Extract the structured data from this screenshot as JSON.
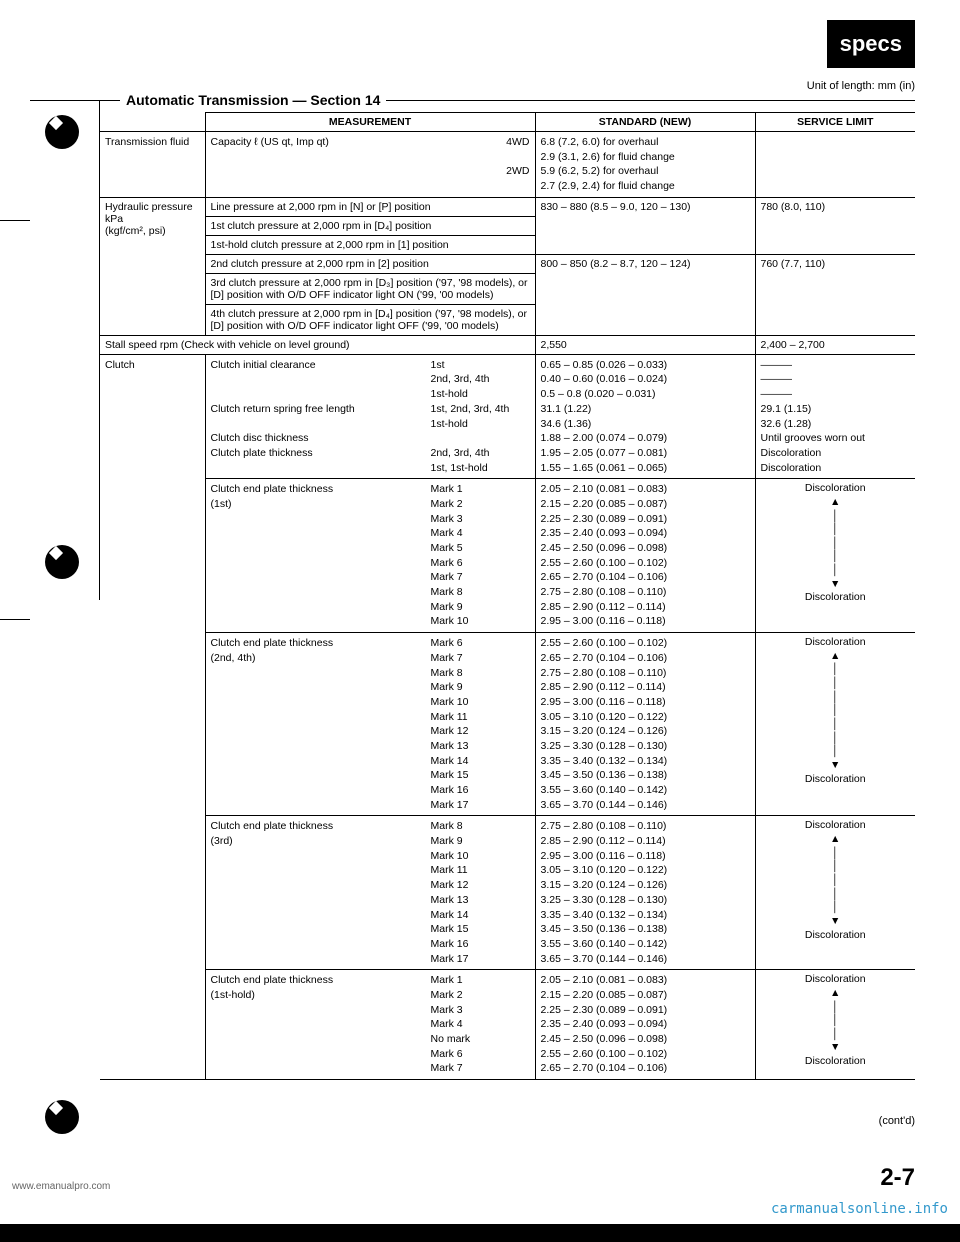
{
  "badge": "specs",
  "unit_label": "Unit of length: mm (in)",
  "section_title": "Automatic Transmission — Section 14",
  "headers": {
    "measurement": "MEASUREMENT",
    "standard": "STANDARD (NEW)",
    "service": "SERVICE LIMIT"
  },
  "trans_fluid": {
    "label": "Transmission fluid",
    "meas": "Capacity   ℓ (US qt, Imp qt)",
    "fourwd": "4WD",
    "twowd": "2WD",
    "std": "6.8 (7.2, 6.0) for overhaul\n2.9 (3.1, 2.6) for fluid change\n5.9 (6.2, 5.2) for overhaul\n2.7 (2.9, 2.4) for fluid change"
  },
  "hydraulic": {
    "label": "Hydraulic pressure\nkPa\n(kgf/cm², psi)",
    "rows": [
      {
        "meas": "Line pressure at 2,000 rpm in [N] or [P] position",
        "std": "830 – 880 (8.5 – 9.0, 120 – 130)",
        "limit": "780 (8.0, 110)"
      },
      {
        "meas": "1st clutch pressure at 2,000 rpm in [D₄] position",
        "std": "",
        "limit": ""
      },
      {
        "meas": "1st-hold clutch pressure at 2,000 rpm in [1] position",
        "std": "",
        "limit": ""
      },
      {
        "meas": "2nd clutch pressure at 2,000 rpm in [2] position",
        "std": "800 – 850 (8.2 – 8.7, 120 – 124)",
        "limit": "760 (7.7, 110)"
      },
      {
        "meas": "3rd clutch pressure at 2,000 rpm in [D₃] position ('97, '98 models), or [D] position with O/D OFF indicator light ON ('99, '00 models)",
        "std": "",
        "limit": ""
      },
      {
        "meas": "4th clutch pressure at 2,000 rpm in [D₄] position ('97, '98 models), or [D] position with O/D OFF indicator light OFF ('99, '00 models)",
        "std": "",
        "limit": ""
      }
    ]
  },
  "stall": {
    "label": "Stall speed rpm (Check with vehicle on level ground)",
    "std": "2,550",
    "limit": "2,400 – 2,700"
  },
  "clutch": {
    "label": "Clutch",
    "block1": {
      "meas_lines": [
        "Clutch initial clearance",
        "",
        "",
        "Clutch return spring free length",
        "",
        "Clutch disc thickness",
        "Clutch plate thickness",
        ""
      ],
      "pos_lines": [
        "1st",
        "2nd, 3rd, 4th",
        "1st-hold",
        "1st, 2nd, 3rd, 4th",
        "1st-hold",
        "",
        "2nd, 3rd, 4th",
        "1st, 1st-hold"
      ],
      "std_lines": [
        "0.65 – 0.85 (0.026 – 0.033)",
        "0.40 – 0.60 (0.016 – 0.024)",
        "0.5 – 0.8 (0.020 – 0.031)",
        "31.1 (1.22)",
        "34.6 (1.36)",
        "1.88 – 2.00 (0.074 – 0.079)",
        "1.95 – 2.05 (0.077 – 0.081)",
        "1.55 – 1.65 (0.061 – 0.065)"
      ],
      "limit_lines": [
        "———",
        "———",
        "———",
        "29.1 (1.15)",
        "32.6 (1.28)",
        "Until grooves worn out",
        "Discoloration",
        "Discoloration"
      ]
    },
    "block2": {
      "title": "Clutch end plate thickness\n(1st)",
      "marks": [
        "Mark 1",
        "Mark 2",
        "Mark 3",
        "Mark 4",
        "Mark 5",
        "Mark 6",
        "Mark 7",
        "Mark 8",
        "Mark 9",
        "Mark 10"
      ],
      "std": [
        "2.05 – 2.10 (0.081 – 0.083)",
        "2.15 – 2.20 (0.085 – 0.087)",
        "2.25 – 2.30 (0.089 – 0.091)",
        "2.35 – 2.40 (0.093 – 0.094)",
        "2.45 – 2.50 (0.096 – 0.098)",
        "2.55 – 2.60 (0.100 – 0.102)",
        "2.65 – 2.70 (0.104 – 0.106)",
        "2.75 – 2.80 (0.108 – 0.110)",
        "2.85 – 2.90 (0.112 – 0.114)",
        "2.95 – 3.00 (0.116 – 0.118)"
      ],
      "limit_top": "Discoloration",
      "limit_bot": "Discoloration"
    },
    "block3": {
      "title": "Clutch end plate thickness\n(2nd, 4th)",
      "marks": [
        "Mark 6",
        "Mark 7",
        "Mark 8",
        "Mark 9",
        "Mark 10",
        "Mark 11",
        "Mark 12",
        "Mark 13",
        "Mark 14",
        "Mark 15",
        "Mark 16",
        "Mark 17"
      ],
      "std": [
        "2.55 – 2.60 (0.100 – 0.102)",
        "2.65 – 2.70 (0.104 – 0.106)",
        "2.75 – 2.80 (0.108 – 0.110)",
        "2.85 – 2.90 (0.112 – 0.114)",
        "2.95 – 3.00 (0.116 – 0.118)",
        "3.05 – 3.10 (0.120 – 0.122)",
        "3.15 – 3.20 (0.124 – 0.126)",
        "3.25 – 3.30 (0.128 – 0.130)",
        "3.35 – 3.40 (0.132 – 0.134)",
        "3.45 – 3.50 (0.136 – 0.138)",
        "3.55 – 3.60 (0.140 – 0.142)",
        "3.65 – 3.70 (0.144 – 0.146)"
      ],
      "limit_top": "Discoloration",
      "limit_bot": "Discoloration"
    },
    "block4": {
      "title": "Clutch end plate thickness\n(3rd)",
      "marks": [
        "Mark 8",
        "Mark 9",
        "Mark 10",
        "Mark 11",
        "Mark 12",
        "Mark 13",
        "Mark 14",
        "Mark 15",
        "Mark 16",
        "Mark 17"
      ],
      "std": [
        "2.75 – 2.80 (0.108 – 0.110)",
        "2.85 – 2.90 (0.112 – 0.114)",
        "2.95 – 3.00 (0.116 – 0.118)",
        "3.05 – 3.10 (0.120 – 0.122)",
        "3.15 – 3.20 (0.124 – 0.126)",
        "3.25 – 3.30 (0.128 – 0.130)",
        "3.35 – 3.40 (0.132 – 0.134)",
        "3.45 – 3.50 (0.136 – 0.138)",
        "3.55 – 3.60 (0.140 – 0.142)",
        "3.65 – 3.70 (0.144 – 0.146)"
      ],
      "limit_top": "Discoloration",
      "limit_bot": "Discoloration"
    },
    "block5": {
      "title": "Clutch end plate thickness\n(1st-hold)",
      "marks": [
        "Mark 1",
        "Mark 2",
        "Mark 3",
        "Mark 4",
        "No mark",
        "Mark 6",
        "Mark 7"
      ],
      "std": [
        "2.05 – 2.10 (0.081 – 0.083)",
        "2.15 – 2.20 (0.085 – 0.087)",
        "2.25 – 2.30 (0.089 – 0.091)",
        "2.35 – 2.40 (0.093 – 0.094)",
        "2.45 – 2.50 (0.096 – 0.098)",
        "2.55 – 2.60 (0.100 – 0.102)",
        "2.65 – 2.70 (0.104 – 0.106)"
      ],
      "limit_top": "Discoloration",
      "limit_bot": "Discoloration"
    }
  },
  "contd": "(cont'd)",
  "page_num": "2-7",
  "watermark_left": "www.emanualpro.com",
  "watermark_right": "carmanualsonline.info"
}
